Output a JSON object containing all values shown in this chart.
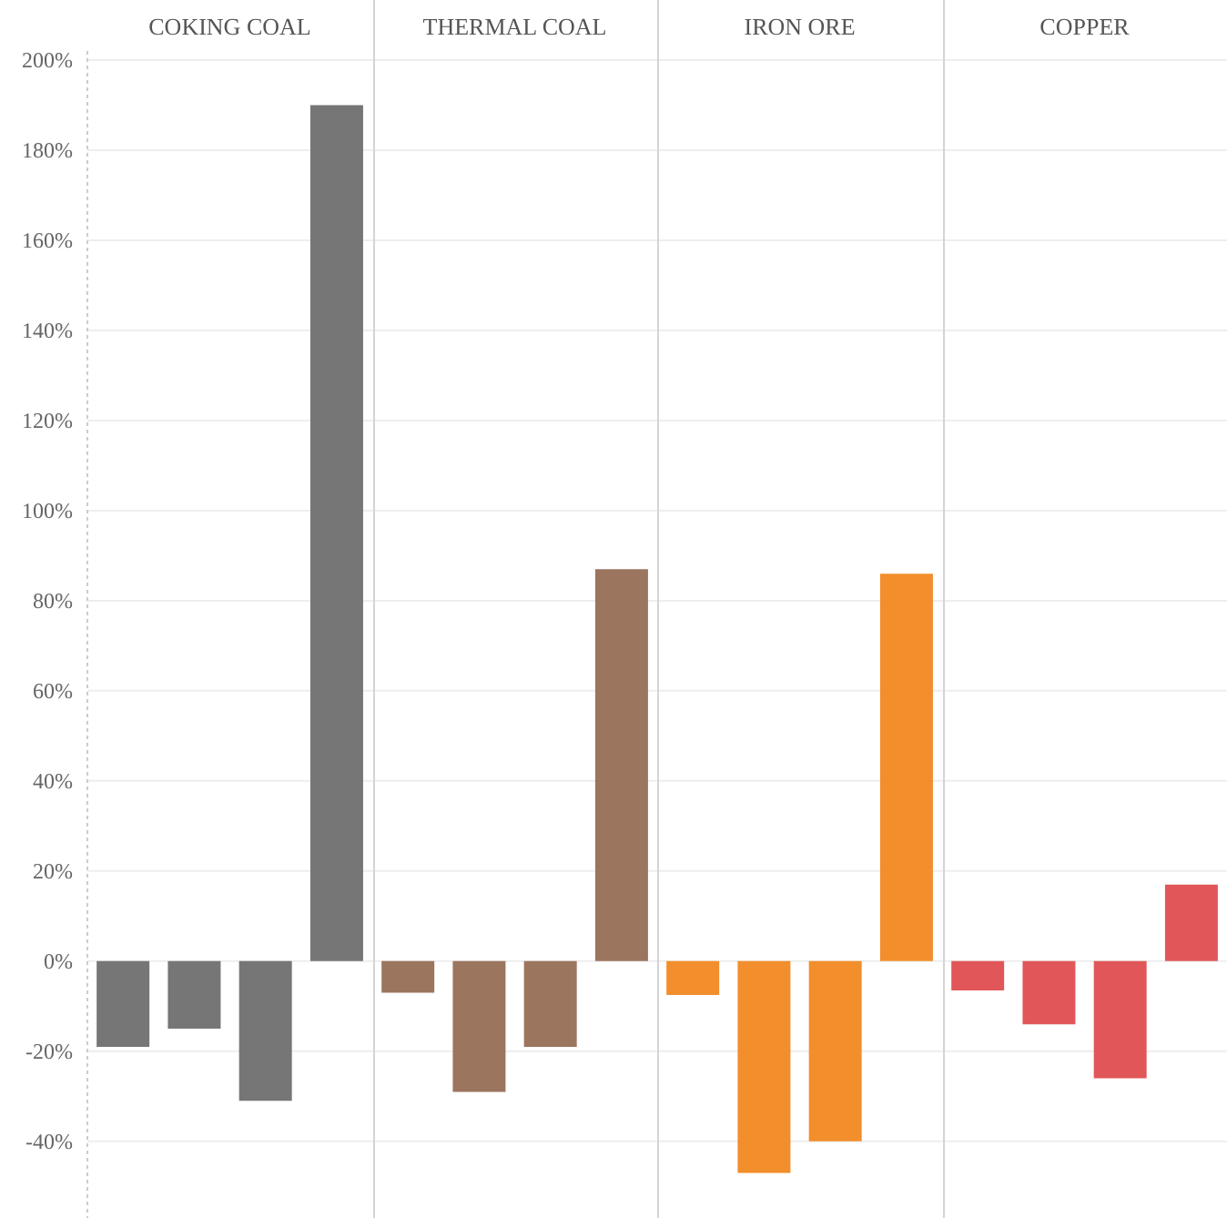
{
  "chart_data": {
    "type": "bar",
    "categories": [
      null,
      null,
      null,
      null,
      null,
      null,
      null,
      null,
      null,
      null,
      null,
      null,
      null,
      null,
      null,
      null
    ],
    "values": [
      -19,
      -15,
      -31,
      190,
      -7,
      -29,
      -19,
      87,
      -7.5,
      -47,
      -40,
      86,
      -6.5,
      -14,
      -26,
      17
    ],
    "colors": [
      "#767676",
      "#767676",
      "#767676",
      "#767676",
      "#9c755f",
      "#9c755f",
      "#9c755f",
      "#9c755f",
      "#f28e2b",
      "#f28e2b",
      "#f28e2b",
      "#f28e2b",
      "#e15759",
      "#e15759",
      "#e15759",
      "#e15759"
    ],
    "annotations": [
      "COKING COAL",
      "THERMAL COAL",
      "IRON ORE",
      "COPPER"
    ],
    "ylim": [
      -57,
      202
    ],
    "yticks": [
      {
        "value": -40,
        "label": "-40%"
      },
      {
        "value": -20,
        "label": "-20%"
      },
      {
        "value": 0,
        "label": "0%"
      },
      {
        "value": 20,
        "label": "20%"
      },
      {
        "value": 40,
        "label": "40%"
      },
      {
        "value": 60,
        "label": "60%"
      },
      {
        "value": 80,
        "label": "80%"
      },
      {
        "value": 100,
        "label": "100%"
      },
      {
        "value": 120,
        "label": "120%"
      },
      {
        "value": 140,
        "label": "140%"
      },
      {
        "value": 160,
        "label": "160%"
      },
      {
        "value": 180,
        "label": "180%"
      },
      {
        "value": 200,
        "label": "200%"
      }
    ],
    "grid": "y"
  }
}
